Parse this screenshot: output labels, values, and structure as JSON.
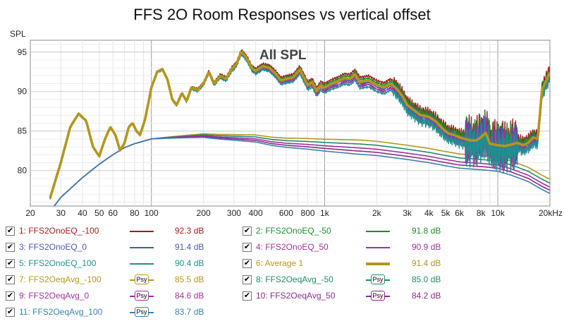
{
  "chart_data": {
    "type": "line",
    "title": "FFS 2O Room Responses vs vertical offset",
    "ylabel": "SPL",
    "xunit": "20kHz",
    "annotation": "All SPL",
    "xscale": "log",
    "xlim": [
      20,
      20000
    ],
    "ylim": [
      75.5,
      96.5
    ],
    "grid": true,
    "x_ticks": [
      {
        "v": 20,
        "label": "20"
      },
      {
        "v": 30,
        "label": "30"
      },
      {
        "v": 40,
        "label": "40"
      },
      {
        "v": 50,
        "label": "50"
      },
      {
        "v": 60,
        "label": "60"
      },
      {
        "v": 80,
        "label": "80"
      },
      {
        "v": 100,
        "label": "100"
      },
      {
        "v": 200,
        "label": "200"
      },
      {
        "v": 300,
        "label": "300"
      },
      {
        "v": 400,
        "label": "400"
      },
      {
        "v": 600,
        "label": "600"
      },
      {
        "v": 800,
        "label": "800"
      },
      {
        "v": 1000,
        "label": "1k"
      },
      {
        "v": 2000,
        "label": "2k"
      },
      {
        "v": 3000,
        "label": "3k"
      },
      {
        "v": 4000,
        "label": "4k"
      },
      {
        "v": 5000,
        "label": "5k"
      },
      {
        "v": 6000,
        "label": "6k"
      },
      {
        "v": 8000,
        "label": "8k"
      },
      {
        "v": 10000,
        "label": "10k"
      }
    ],
    "y_ticks": [
      {
        "v": 80,
        "label": "80"
      },
      {
        "v": 85,
        "label": "85"
      },
      {
        "v": 90,
        "label": "90"
      },
      {
        "v": 95,
        "label": "95"
      }
    ],
    "series": [
      {
        "id": 1,
        "name": "FFS2OnoEQ_-100",
        "value": "92.3 dB",
        "color": "#a01c1c",
        "psy": false,
        "group": "room",
        "offset": 0.6
      },
      {
        "id": 2,
        "name": "FFS2OnoEQ_-50",
        "value": "91.8 dB",
        "color": "#1e8a2a",
        "psy": false,
        "group": "room",
        "offset": 0.3
      },
      {
        "id": 3,
        "name": "FFS2OnoEQ_0",
        "value": "91.4 dB",
        "color": "#4a56b0",
        "psy": false,
        "group": "room",
        "offset": -0.2
      },
      {
        "id": 4,
        "name": "FFS2OnoEQ_50",
        "value": "90.9 dB",
        "color": "#a0309a",
        "psy": false,
        "group": "room",
        "offset": -0.5
      },
      {
        "id": 5,
        "name": "FFS2OnoEQ_100",
        "value": "90.4 dB",
        "color": "#1f8f8f",
        "psy": false,
        "group": "room",
        "offset": -0.8
      },
      {
        "id": 6,
        "name": "Average 1",
        "value": "91.4 dB",
        "color": "#b3961e",
        "psy": false,
        "group": "average",
        "offset": 0
      },
      {
        "id": 7,
        "name": "FFS2OeqAvg_-100",
        "value": "85.5 dB",
        "color": "#b3961e",
        "psy": true,
        "group": "eq",
        "offset": 1.4
      },
      {
        "id": 8,
        "name": "FFS2OeqAvg_-50",
        "value": "85.0 dB",
        "color": "#1e8a6a",
        "psy": true,
        "group": "eq",
        "offset": 0.9
      },
      {
        "id": 9,
        "name": "FFS2OeqAvg_0",
        "value": "84.6 dB",
        "color": "#a0309a",
        "psy": true,
        "group": "eq",
        "offset": 0.4
      },
      {
        "id": 10,
        "name": "FFS2OeqAvg_50",
        "value": "84.2 dB",
        "color": "#8a2a8a",
        "psy": true,
        "group": "eq",
        "offset": 0.0
      },
      {
        "id": 11,
        "name": "FFS2OeqAvg_100",
        "value": "83.7 dB",
        "color": "#3b7fb0",
        "psy": true,
        "group": "eq",
        "offset": -0.4
      }
    ],
    "room_curve": [
      [
        26,
        76.5
      ],
      [
        30,
        81
      ],
      [
        34,
        85.5
      ],
      [
        38,
        87.2
      ],
      [
        42,
        86.3
      ],
      [
        46,
        83
      ],
      [
        50,
        81.8
      ],
      [
        54,
        84
      ],
      [
        58,
        85.5
      ],
      [
        62,
        84.5
      ],
      [
        66,
        82.5
      ],
      [
        70,
        83.5
      ],
      [
        74,
        85.5
      ],
      [
        78,
        86
      ],
      [
        82,
        85
      ],
      [
        86,
        84.5
      ],
      [
        92,
        86.5
      ],
      [
        100,
        90.5
      ],
      [
        108,
        92.5
      ],
      [
        116,
        92.8
      ],
      [
        124,
        91.5
      ],
      [
        132,
        89
      ],
      [
        140,
        88.3
      ],
      [
        150,
        89.8
      ],
      [
        160,
        88.8
      ],
      [
        170,
        90.5
      ],
      [
        185,
        90.2
      ],
      [
        200,
        91
      ],
      [
        215,
        92.5
      ],
      [
        230,
        91
      ],
      [
        250,
        92
      ],
      [
        270,
        91.6
      ],
      [
        290,
        92.8
      ],
      [
        310,
        93.5
      ],
      [
        330,
        95
      ],
      [
        345,
        94.6
      ],
      [
        360,
        94
      ],
      [
        380,
        93
      ],
      [
        400,
        92.6
      ],
      [
        440,
        93.2
      ],
      [
        480,
        93
      ],
      [
        520,
        92.3
      ],
      [
        560,
        91.4
      ],
      [
        600,
        91.6
      ],
      [
        660,
        91.8
      ],
      [
        720,
        92.8
      ],
      [
        760,
        91.8
      ],
      [
        800,
        90.8
      ],
      [
        850,
        91.2
      ],
      [
        900,
        90
      ],
      [
        950,
        90.8
      ],
      [
        1000,
        90.5
      ],
      [
        1100,
        91
      ],
      [
        1200,
        91.3
      ],
      [
        1300,
        91.7
      ],
      [
        1400,
        91.6
      ],
      [
        1500,
        92.2
      ],
      [
        1600,
        91.2
      ],
      [
        1800,
        91.4
      ],
      [
        2000,
        90.8
      ],
      [
        2200,
        90.5
      ],
      [
        2400,
        91
      ],
      [
        2600,
        90.4
      ],
      [
        2800,
        89.5
      ],
      [
        3000,
        88.3
      ],
      [
        3300,
        87.6
      ],
      [
        3600,
        87
      ],
      [
        4000,
        86.8
      ],
      [
        4400,
        86.2
      ],
      [
        4800,
        85.3
      ],
      [
        5200,
        84.7
      ],
      [
        5600,
        84.5
      ],
      [
        6000,
        84.2
      ],
      [
        6500,
        84
      ],
      [
        7000,
        83.8
      ],
      [
        7500,
        83.8
      ],
      [
        8000,
        84.2
      ],
      [
        8500,
        84.8
      ],
      [
        9000,
        83.4
      ],
      [
        10000,
        83.2
      ],
      [
        11000,
        83.1
      ],
      [
        12000,
        83.3
      ],
      [
        13000,
        83.5
      ],
      [
        14000,
        83.2
      ],
      [
        15000,
        83.5
      ],
      [
        16000,
        84.2
      ],
      [
        17000,
        84
      ],
      [
        17500,
        87
      ],
      [
        18000,
        90.2
      ],
      [
        19000,
        91.3
      ],
      [
        20000,
        92.4
      ]
    ],
    "eq_curve": [
      [
        20,
        72
      ],
      [
        25,
        74.3
      ],
      [
        30,
        76.6
      ],
      [
        40,
        79.1
      ],
      [
        50,
        80.8
      ],
      [
        60,
        82
      ],
      [
        70,
        82.9
      ],
      [
        80,
        83.4
      ],
      [
        100,
        84
      ],
      [
        120,
        84.1
      ],
      [
        150,
        84.2
      ],
      [
        200,
        84.3
      ],
      [
        250,
        84.1
      ],
      [
        300,
        84
      ],
      [
        400,
        83.8
      ],
      [
        500,
        83.4
      ],
      [
        600,
        83.2
      ],
      [
        800,
        83
      ],
      [
        1000,
        82.8
      ],
      [
        1500,
        82.5
      ],
      [
        2000,
        82.3
      ],
      [
        3000,
        81.8
      ],
      [
        4000,
        81.4
      ],
      [
        5000,
        81
      ],
      [
        6000,
        80.7
      ],
      [
        8000,
        80.5
      ],
      [
        10000,
        80.3
      ],
      [
        12000,
        79.8
      ],
      [
        15000,
        79
      ],
      [
        18000,
        78
      ],
      [
        20000,
        77.5
      ]
    ]
  },
  "legend_rows": [
    [
      1,
      2
    ],
    [
      3,
      4
    ],
    [
      5,
      6
    ],
    [
      7,
      8
    ],
    [
      9,
      10
    ],
    [
      11
    ]
  ]
}
